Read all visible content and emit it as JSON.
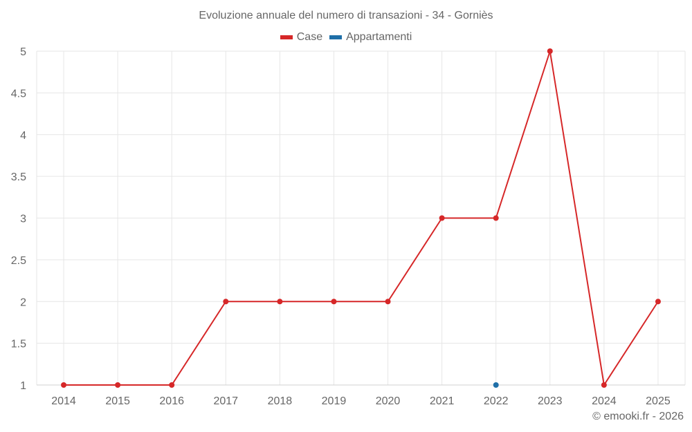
{
  "header": {
    "title": "Evoluzione annuale del numero di transazioni - 34 - Gorniès"
  },
  "legend": [
    {
      "label": "Case",
      "color": "#d62728"
    },
    {
      "label": "Appartamenti",
      "color": "#1f6fa8"
    }
  ],
  "footer": {
    "credit": "© emooki.fr - 2026"
  },
  "colors": {
    "case": "#d62728",
    "appartamenti": "#1f6fa8",
    "grid": "#e6e6e6",
    "axis_text": "#666666"
  },
  "chart_data": {
    "type": "line",
    "title": "Evoluzione annuale del numero di transazioni - 34 - Gorniès",
    "xlabel": "",
    "ylabel": "",
    "categories": [
      "2014",
      "2015",
      "2016",
      "2017",
      "2018",
      "2019",
      "2020",
      "2021",
      "2022",
      "2023",
      "2024",
      "2025"
    ],
    "yticks": [
      "1",
      "1.5",
      "2",
      "2.5",
      "3",
      "3.5",
      "4",
      "4.5",
      "5"
    ],
    "ylim": [
      1,
      5
    ],
    "grid": true,
    "legend_position": "top",
    "series": [
      {
        "name": "Case",
        "color": "#d62728",
        "values": [
          1,
          1,
          1,
          2,
          2,
          2,
          2,
          3,
          3,
          5,
          1,
          2
        ]
      },
      {
        "name": "Appartamenti",
        "color": "#1f6fa8",
        "values": [
          null,
          null,
          null,
          null,
          null,
          null,
          null,
          null,
          1,
          null,
          null,
          null
        ]
      }
    ]
  }
}
